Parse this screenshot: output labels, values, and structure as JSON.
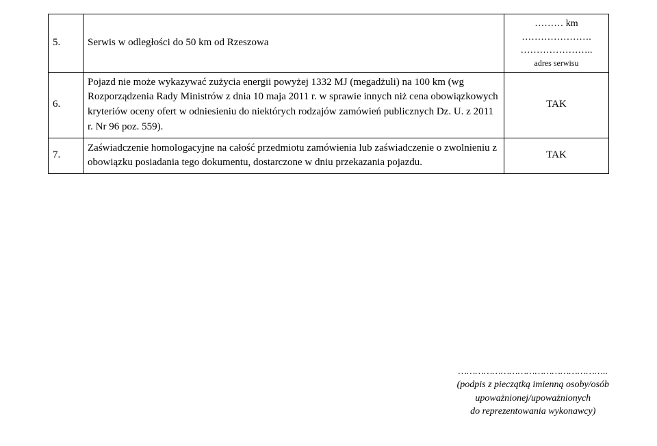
{
  "table": {
    "border_color": "#000000",
    "background_color": "#ffffff",
    "text_color": "#000000",
    "font_family": "Times New Roman",
    "row_5": {
      "num": "5.",
      "text": "Serwis w odległości do 50 km od Rzeszowa",
      "right_line1": "……… km",
      "right_line2": "………………….",
      "right_line3": "…………………..",
      "right_line4": "adres serwisu"
    },
    "row_6": {
      "num": "6.",
      "text": "Pojazd nie może wykazywać zużycia energii powyżej 1332 MJ (megadżuli) na 100 km (wg Rozporządzenia Rady Ministrów z dnia 10 maja 2011 r. w sprawie innych niż cena obowiązkowych kryteriów oceny ofert w odniesieniu do niektórych rodzajów zamówień publicznych Dz. U. z 2011 r. Nr 96 poz. 559).",
      "right": "TAK"
    },
    "row_7": {
      "num": "7.",
      "text": "Zaświadczenie homologacyjne na całość przedmiotu zamówienia lub zaświadczenie o zwolnieniu z obowiązku posiadania tego dokumentu, dostarczone w dniu przekazania pojazdu.",
      "right": "TAK"
    }
  },
  "footer": {
    "dots": "……………………………………………..",
    "line1": "(podpis z pieczątką imienną  osoby/osób",
    "line2": "upoważnionej/upoważnionych",
    "line3": "do reprezentowania wykonawcy)"
  }
}
